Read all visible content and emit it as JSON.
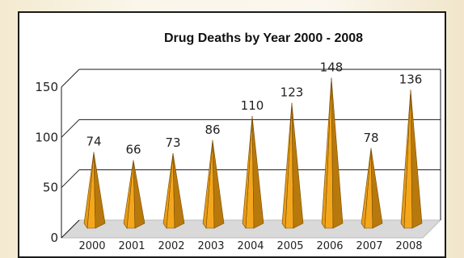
{
  "colors": {
    "spike_light": "#f5a71c",
    "spike_dark": "#b8790c",
    "floor": "#d9d9d9",
    "gridline": "#1a1a1a"
  },
  "chart_data": {
    "type": "bar",
    "title": "Drug Deaths by Year 2000 - 2008",
    "xlabel": "",
    "ylabel": "",
    "categories": [
      "2000",
      "2001",
      "2002",
      "2003",
      "2004",
      "2005",
      "2006",
      "2007",
      "2008"
    ],
    "values": [
      74,
      66,
      73,
      86,
      110,
      123,
      148,
      78,
      136
    ],
    "ylim": [
      0,
      150
    ],
    "yticks": [
      0,
      50,
      100,
      150
    ],
    "grid": true,
    "legend": "none",
    "mark_shape": "3d-pyramid"
  }
}
